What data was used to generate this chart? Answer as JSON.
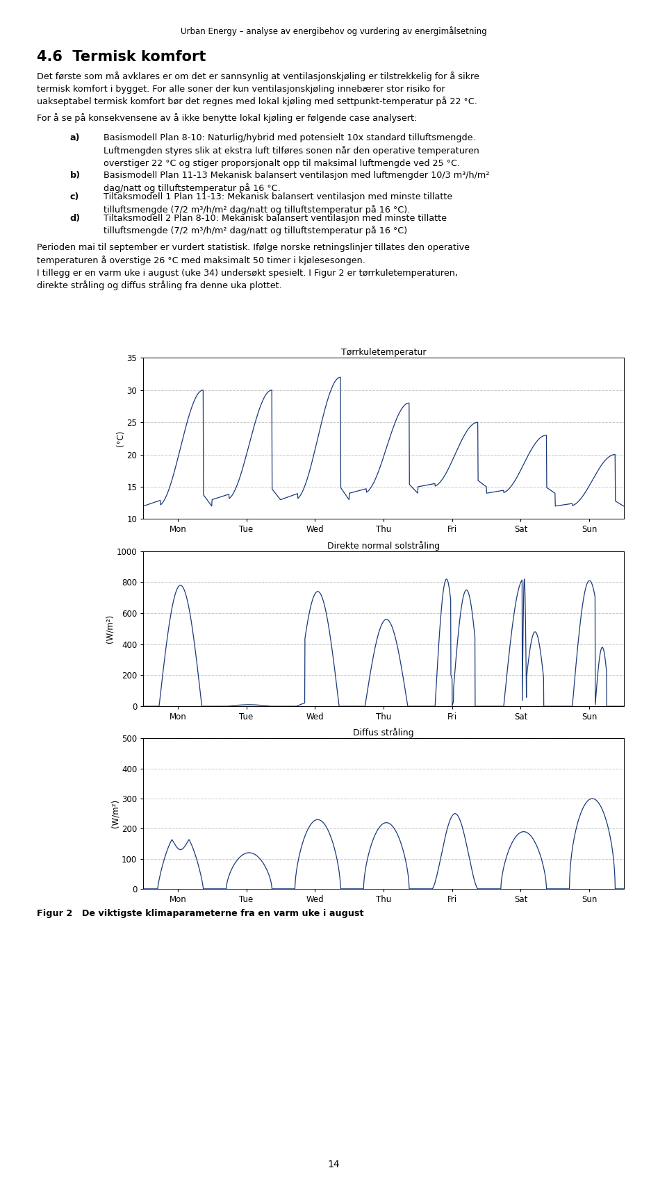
{
  "header": "Urban Energy – analyse av energibehov og vurdering av energimålsetning",
  "section_title": "4.6  Termisk komfort",
  "chart1_title": "Tørrkuletemperatur",
  "chart1_ylabel": "(°C)",
  "chart1_yticks": [
    10,
    15,
    20,
    25,
    30,
    35
  ],
  "chart1_ylim": [
    10,
    35
  ],
  "chart2_title": "Direkte normal solstråling",
  "chart2_ylabel": "(W/m²)",
  "chart2_yticks": [
    0,
    200,
    400,
    600,
    800,
    1000
  ],
  "chart2_ylim": [
    0,
    1000
  ],
  "chart3_title": "Diffus stråling",
  "chart3_ylabel": "(W/m²)",
  "chart3_yticks": [
    0,
    100,
    200,
    300,
    400,
    500
  ],
  "chart3_ylim": [
    0,
    500
  ],
  "xticklabels": [
    "Mon",
    "Tue",
    "Wed",
    "Thu",
    "Fri",
    "Sat",
    "Sun"
  ],
  "line_color": "#1a3a7a",
  "grid_color": "#c8c8c8",
  "figure_caption": "Figur 2   De viktigste klimaparameterne fra en varm uke i august",
  "page_number": "14",
  "background_color": "#ffffff"
}
